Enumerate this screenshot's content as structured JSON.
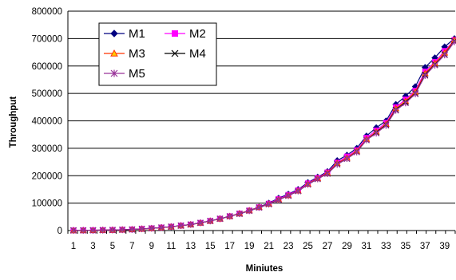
{
  "chart_data": {
    "type": "line",
    "title": "",
    "xlabel": "Miniutes",
    "ylabel": "Throughput",
    "ylim": [
      0,
      800000
    ],
    "yticks": [
      0,
      100000,
      200000,
      300000,
      400000,
      500000,
      600000,
      700000,
      800000
    ],
    "ytick_labels": [
      "0",
      "100000",
      "200000",
      "300000",
      "400000",
      "500000",
      "600000",
      "700000",
      "800000"
    ],
    "x": [
      1,
      2,
      3,
      4,
      5,
      6,
      7,
      8,
      9,
      10,
      11,
      12,
      13,
      14,
      15,
      16,
      17,
      18,
      19,
      20,
      21,
      22,
      23,
      24,
      25,
      26,
      27,
      28,
      29,
      30,
      31,
      32,
      33,
      34,
      35,
      36,
      37,
      38,
      39,
      40
    ],
    "xtick_labels": [
      "1",
      "3",
      "5",
      "7",
      "9",
      "11",
      "13",
      "15",
      "17",
      "19",
      "21",
      "23",
      "25",
      "27",
      "29",
      "31",
      "33",
      "35",
      "37",
      "39"
    ],
    "grid": "horizontal",
    "legend": "top-left",
    "series": [
      {
        "name": "M1",
        "color": "#000080",
        "marker": "diamond",
        "values": [
          500,
          800,
          1000,
          1500,
          2000,
          3000,
          4000,
          6000,
          8000,
          11000,
          14000,
          18000,
          22000,
          28000,
          35000,
          43000,
          52000,
          62000,
          73000,
          86000,
          100000,
          118000,
          133000,
          150000,
          175000,
          195000,
          215000,
          255000,
          275000,
          300000,
          345000,
          375000,
          400000,
          460000,
          490000,
          525000,
          595000,
          630000,
          670000,
          700000
        ]
      },
      {
        "name": "M2",
        "color": "#FF00FF",
        "marker": "square",
        "values": [
          500,
          800,
          1000,
          1500,
          2000,
          3000,
          4000,
          6000,
          8000,
          11000,
          14000,
          18000,
          22000,
          28000,
          35000,
          43000,
          52000,
          62000,
          73000,
          85000,
          98000,
          115000,
          130000,
          147000,
          172000,
          192000,
          212000,
          248000,
          270000,
          293000,
          338000,
          365000,
          393000,
          450000,
          478000,
          510000,
          580000,
          615000,
          655000,
          695000
        ]
      },
      {
        "name": "M3",
        "color": "#FF3300",
        "marker": "triangle",
        "values": [
          500,
          800,
          1000,
          1500,
          2000,
          3000,
          4000,
          6000,
          8000,
          11000,
          14000,
          18000,
          22000,
          28000,
          35000,
          43000,
          52000,
          62000,
          73000,
          85000,
          97000,
          113000,
          128000,
          145000,
          170000,
          190000,
          210000,
          245000,
          265000,
          290000,
          333000,
          360000,
          388000,
          445000,
          472000,
          505000,
          573000,
          610000,
          648000,
          695000
        ]
      },
      {
        "name": "M4",
        "color": "#000000",
        "marker": "x",
        "values": [
          500,
          800,
          1000,
          1500,
          2000,
          3000,
          4000,
          6000,
          8000,
          11000,
          14000,
          18000,
          22000,
          28000,
          35000,
          43000,
          52000,
          61000,
          72000,
          84000,
          96000,
          112000,
          127000,
          144000,
          168000,
          188000,
          208000,
          242000,
          262000,
          287000,
          330000,
          357000,
          385000,
          440000,
          468000,
          500000,
          568000,
          605000,
          642000,
          690000
        ]
      },
      {
        "name": "M5",
        "color": "#993399",
        "marker": "star",
        "values": [
          500,
          800,
          1000,
          1500,
          2000,
          3000,
          4000,
          6000,
          8000,
          11000,
          14000,
          18000,
          22000,
          28000,
          35000,
          43000,
          52000,
          61000,
          72000,
          84000,
          96000,
          112000,
          127000,
          144000,
          168000,
          188000,
          207000,
          241000,
          262000,
          286000,
          330000,
          355000,
          383000,
          438000,
          465000,
          498000,
          565000,
          603000,
          640000,
          688000
        ]
      }
    ]
  }
}
